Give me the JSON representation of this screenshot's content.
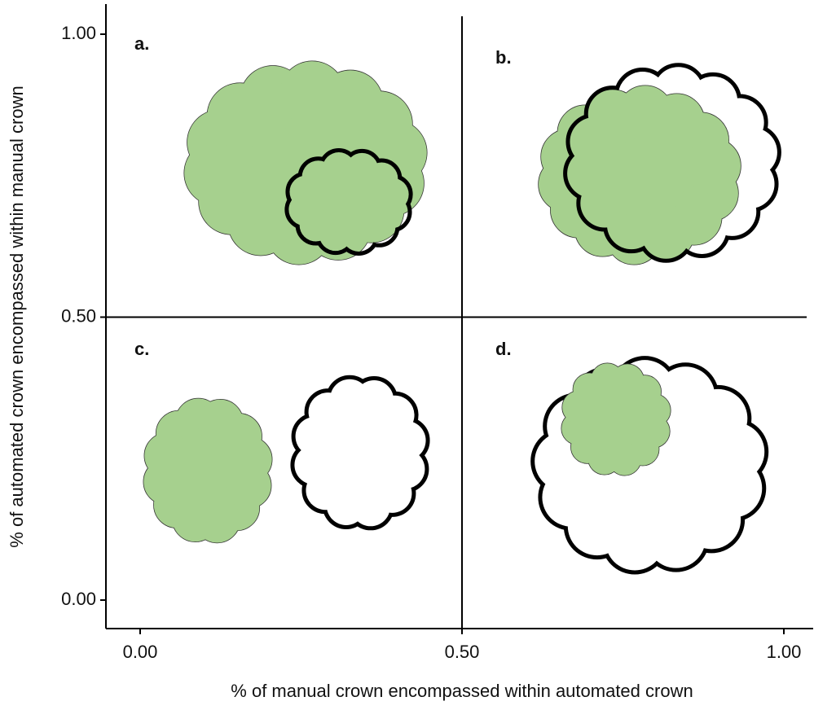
{
  "x_axis": {
    "title": "% of manual crown encompassed within automated crown",
    "range": [
      0,
      1
    ],
    "ticks": [
      {
        "value": 0,
        "label": "0.00"
      },
      {
        "value": 0.5,
        "label": "0.50"
      },
      {
        "value": 1,
        "label": "1.00"
      }
    ]
  },
  "y_axis": {
    "title": "% of automated crown encompassed within manual crown",
    "range": [
      0,
      1
    ],
    "ticks": [
      {
        "value": 0,
        "label": "0.00"
      },
      {
        "value": 0.5,
        "label": "0.50"
      },
      {
        "value": 1,
        "label": "1.00"
      }
    ]
  },
  "panels": [
    "a.",
    "b.",
    "c.",
    "d."
  ]
}
